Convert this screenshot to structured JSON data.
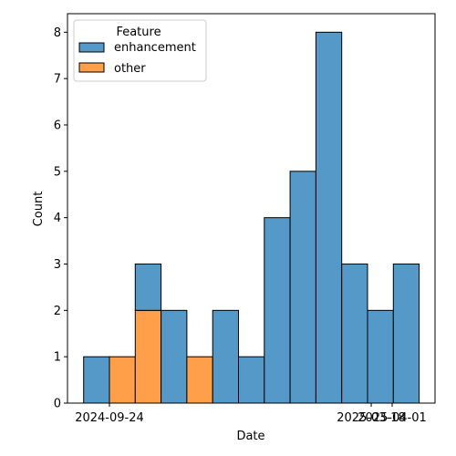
{
  "chart_data": {
    "type": "bar",
    "stacked": true,
    "xlabel": "Date",
    "ylabel": "Count",
    "ylim": [
      0,
      8.4
    ],
    "yticks": [
      0,
      1,
      2,
      3,
      4,
      5,
      6,
      7,
      8
    ],
    "xticks": [
      "2024-09-24",
      "2025-03-18",
      "2025-04-01"
    ],
    "bins": [
      "2024-09-14",
      "2024-09-24",
      "2024-10-05",
      "2024-10-15",
      "2024-10-26",
      "2024-11-05",
      "2024-11-15",
      "2024-11-26",
      "2024-12-06",
      "2024-12-17",
      "2024-12-27",
      "2025-01-06",
      "2025-01-17"
    ],
    "legend": {
      "title": "Feature",
      "position": "top-left"
    },
    "series": [
      {
        "name": "other",
        "color": "#ff9f4a",
        "values": [
          0,
          1,
          2,
          0,
          1,
          0,
          0,
          0,
          0,
          0,
          0,
          0,
          0
        ]
      },
      {
        "name": "enhancement",
        "color": "#5499c8",
        "values": [
          1,
          0,
          1,
          2,
          0,
          2,
          1,
          4,
          5,
          8,
          3,
          2,
          3
        ]
      }
    ]
  }
}
